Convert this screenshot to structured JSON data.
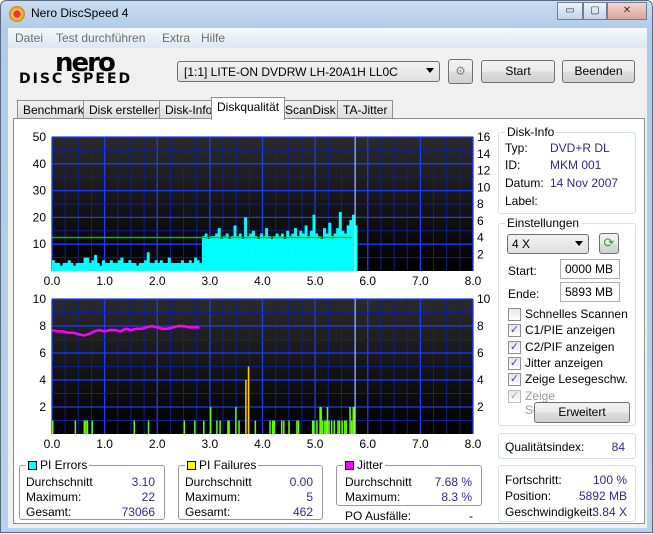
{
  "window": {
    "title": "Nero DiscSpeed 4",
    "minimize": "▭",
    "maximize": "▢",
    "close": "✕"
  },
  "menu": [
    "Datei",
    "Test durchführen",
    "Extra",
    "Hilfe"
  ],
  "logo": {
    "line1": "nero",
    "line2": "DISC SPEED"
  },
  "toolbar": {
    "drive": "[1:1]  LITE-ON DVDRW LH-20A1H LL0C",
    "start": "Start",
    "exit": "Beenden"
  },
  "tabs": [
    "Benchmark",
    "Disk erstellen",
    "Disk-Info",
    "Diskqualität",
    "ScanDisk",
    "TA-Jitter"
  ],
  "active_tab": "Diskqualität",
  "disk_info": {
    "title": "Disk-Info",
    "type_label": "Typ:",
    "type": "DVD+R DL",
    "id_label": "ID:",
    "id": "MKM 001",
    "date_label": "Datum:",
    "date": "14 Nov 2007",
    "label_label": "Label:",
    "label": ""
  },
  "settings": {
    "title": "Einstellungen",
    "speed": "4 X",
    "start_label": "Start:",
    "start": "0000 MB",
    "end_label": "Ende:",
    "end": "5893 MB",
    "checks": [
      {
        "label": "Schnelles Scannen",
        "checked": false,
        "disabled": false
      },
      {
        "label": "C1/PIE anzeigen",
        "checked": true,
        "disabled": false
      },
      {
        "label": "C2/PIF anzeigen",
        "checked": true,
        "disabled": false
      },
      {
        "label": "Jitter anzeigen",
        "checked": true,
        "disabled": false
      },
      {
        "label": "Zeige Lesegeschw.",
        "checked": true,
        "disabled": false
      },
      {
        "label": "Zeige Schreibgeschw.",
        "checked": true,
        "disabled": true
      }
    ],
    "advanced": "Erweitert"
  },
  "quality": {
    "label": "Qualitätsindex:",
    "value": "84"
  },
  "status": {
    "progress_label": "Fortschritt:",
    "progress": "100 %",
    "position_label": "Position:",
    "position": "5892 MB",
    "speed_label": "Geschwindigkeit:",
    "speed": "3.84 X"
  },
  "pi_errors": {
    "title": "PI Errors",
    "color": "#00ffff",
    "avg_label": "Durchschnitt",
    "avg": "3.10",
    "max_label": "Maximum:",
    "max": "22",
    "total_label": "Gesamt:",
    "total": "73066"
  },
  "pi_failures": {
    "title": "PI Failures",
    "color": "#ffff00",
    "avg_label": "Durchschnitt",
    "avg": "0.00",
    "max_label": "Maximum:",
    "max": "5",
    "total_label": "Gesamt:",
    "total": "462"
  },
  "jitter": {
    "title": "Jitter",
    "color": "#ff00ff",
    "avg_label": "Durchschnitt",
    "avg": "7.68 %",
    "max_label": "Maximum:",
    "max": "8.3 %"
  },
  "po": {
    "label": "PO Ausfälle:",
    "value": "-"
  },
  "chart_data": [
    {
      "type": "bar",
      "xlim": [
        0,
        8
      ],
      "ylim": [
        0,
        50
      ],
      "y2lim": [
        0,
        16
      ],
      "xticks": [
        "0.0",
        "1.0",
        "2.0",
        "3.0",
        "4.0",
        "5.0",
        "6.0",
        "7.0",
        "8.0"
      ],
      "yticks": [
        "10",
        "20",
        "30",
        "40",
        "50"
      ],
      "y2ticks": [
        "2",
        "4",
        "6",
        "8",
        "10",
        "12",
        "14",
        "16"
      ],
      "pie_step": 0.05,
      "pie": [
        4,
        3,
        3,
        2,
        3,
        3,
        4,
        3,
        2,
        3,
        3,
        3,
        5,
        5,
        3,
        4,
        6,
        3,
        2,
        4,
        3,
        3,
        4,
        3,
        3,
        4,
        5,
        3,
        3,
        4,
        3,
        3,
        2,
        3,
        3,
        4,
        7,
        3,
        3,
        4,
        3,
        4,
        3,
        3,
        5,
        3,
        3,
        3,
        3,
        4,
        3,
        3,
        4,
        3,
        5,
        4,
        3,
        13,
        14,
        12,
        13,
        13,
        14,
        16,
        12,
        13,
        14,
        12,
        13,
        17,
        13,
        14,
        12,
        20,
        13,
        14,
        15,
        13,
        12,
        14,
        13,
        16,
        13,
        12,
        13,
        14,
        13,
        14,
        12,
        15,
        13,
        14,
        16,
        13,
        15,
        14,
        17,
        13,
        15,
        21,
        14,
        13,
        12,
        16,
        14,
        18,
        13,
        14,
        16,
        22,
        15,
        14,
        17,
        19,
        21,
        17
      ],
      "read_speed": {
        "x": [
          0,
          5.7
        ],
        "y": [
          4,
          4
        ],
        "color": "#00c000"
      },
      "end_marker": 5.76,
      "grid": true
    },
    {
      "type": "bar",
      "xlim": [
        0,
        8
      ],
      "ylim": [
        0,
        10
      ],
      "y2lim": [
        0,
        10
      ],
      "xticks": [
        "0.0",
        "1.0",
        "2.0",
        "3.0",
        "4.0",
        "5.0",
        "6.0",
        "7.0",
        "8.0"
      ],
      "yticks": [
        "2",
        "4",
        "6",
        "8",
        "10"
      ],
      "y2ticks": [
        "2",
        "4",
        "6",
        "8",
        "10"
      ],
      "pif": [
        [
          0.0,
          1
        ],
        [
          0.43,
          1
        ],
        [
          0.6,
          1
        ],
        [
          0.63,
          1
        ],
        [
          0.66,
          1
        ],
        [
          0.75,
          1
        ],
        [
          1.55,
          1
        ],
        [
          1.82,
          1
        ],
        [
          2.5,
          1
        ],
        [
          2.7,
          1
        ],
        [
          2.87,
          1
        ],
        [
          3.0,
          2
        ],
        [
          3.12,
          1
        ],
        [
          3.18,
          1
        ],
        [
          3.33,
          1
        ],
        [
          3.35,
          1
        ],
        [
          3.48,
          2
        ],
        [
          3.54,
          1
        ],
        [
          3.67,
          4
        ],
        [
          3.72,
          5
        ],
        [
          3.85,
          1
        ],
        [
          4.13,
          1
        ],
        [
          4.18,
          1
        ],
        [
          4.21,
          1
        ],
        [
          4.35,
          1
        ],
        [
          4.39,
          1
        ],
        [
          4.49,
          1
        ],
        [
          4.64,
          1
        ],
        [
          4.67,
          1
        ],
        [
          4.94,
          1
        ],
        [
          4.96,
          1
        ],
        [
          5.02,
          1
        ],
        [
          5.08,
          2
        ],
        [
          5.1,
          2
        ],
        [
          5.13,
          1
        ],
        [
          5.17,
          1
        ],
        [
          5.2,
          1
        ],
        [
          5.22,
          2
        ],
        [
          5.25,
          1
        ],
        [
          5.3,
          1
        ],
        [
          5.35,
          1
        ],
        [
          5.42,
          1
        ],
        [
          5.45,
          1
        ],
        [
          5.5,
          1
        ],
        [
          5.55,
          1
        ],
        [
          5.58,
          1
        ],
        [
          5.65,
          2
        ],
        [
          5.68,
          1
        ],
        [
          5.71,
          2
        ],
        [
          5.73,
          2
        ]
      ],
      "jitter_step": 0.1,
      "jitter": [
        7.7,
        7.6,
        7.6,
        7.5,
        7.5,
        7.4,
        7.3,
        7.4,
        7.6,
        7.7,
        7.6,
        7.7,
        7.7,
        7.6,
        7.8,
        7.7,
        7.8,
        7.8,
        7.9,
        8.0,
        7.9,
        7.8,
        7.8,
        7.9,
        8.0,
        8.0,
        7.9,
        7.9,
        7.9
      ],
      "end_marker": 5.76,
      "grid": true
    }
  ]
}
